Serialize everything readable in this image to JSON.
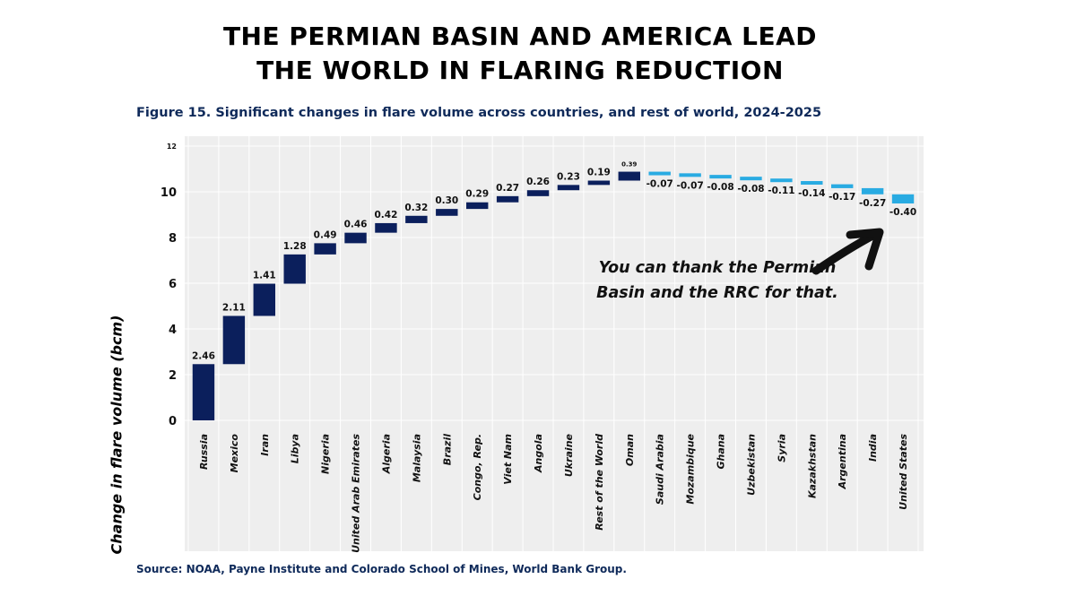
{
  "header": {
    "headline_line1": "THE PERMIAN BASIN AND AMERICA LEAD",
    "headline_line2": "THE WORLD IN FLARING REDUCTION"
  },
  "figure": {
    "subtitle": "Figure 15. Significant changes in flare volume across countries, and rest of world, 2024-2025",
    "source": "Source: NOAA, Payne Institute and Colorado School of Mines, World Bank Group.",
    "annotation": "You can thank the Permian Basin and the RRC for that."
  },
  "colors": {
    "increase": "#0b1f5c",
    "decrease": "#29abe2",
    "plot_background": "#eeeeee",
    "grid": "#ffffff",
    "arrow": "#111111"
  },
  "icons": {
    "annotation_arrow": "arrow-icon"
  },
  "chart_data": {
    "type": "bar",
    "subtype": "waterfall",
    "ylabel": "Change in flare volume (bcm)",
    "ylim": [
      0,
      12
    ],
    "yticks": [
      0,
      2,
      4,
      6,
      8,
      10,
      12
    ],
    "grid": true,
    "categories": [
      "Russia",
      "Mexico",
      "Iran",
      "Libya",
      "Nigeria",
      "United Arab Emirates",
      "Algeria",
      "Malaysia",
      "Brazil",
      "Congo, Rep.",
      "Viet Nam",
      "Angola",
      "Ukraine",
      "Rest of the World",
      "Oman",
      "Saudi Arabia",
      "Mozambique",
      "Ghana",
      "Uzbekistan",
      "Syria",
      "Kazakhstan",
      "Argentina",
      "India",
      "United States"
    ],
    "values": [
      2.46,
      2.11,
      1.41,
      1.28,
      0.49,
      0.46,
      0.42,
      0.32,
      0.3,
      0.29,
      0.27,
      0.26,
      0.23,
      0.19,
      0.39,
      -0.07,
      -0.07,
      -0.08,
      -0.08,
      -0.11,
      -0.14,
      -0.17,
      -0.27,
      -0.4
    ],
    "data_labels": [
      "2.46",
      "2.11",
      "1.41",
      "1.28",
      "0.49",
      "0.46",
      "0.42",
      "0.32",
      "0.30",
      "0.29",
      "0.27",
      "0.26",
      "0.23",
      "0.19",
      "0.39",
      "-0.07",
      "-0.07",
      "-0.08",
      "-0.08",
      "-0.11",
      "-0.14",
      "-0.17",
      "-0.27",
      "-0.40"
    ]
  }
}
